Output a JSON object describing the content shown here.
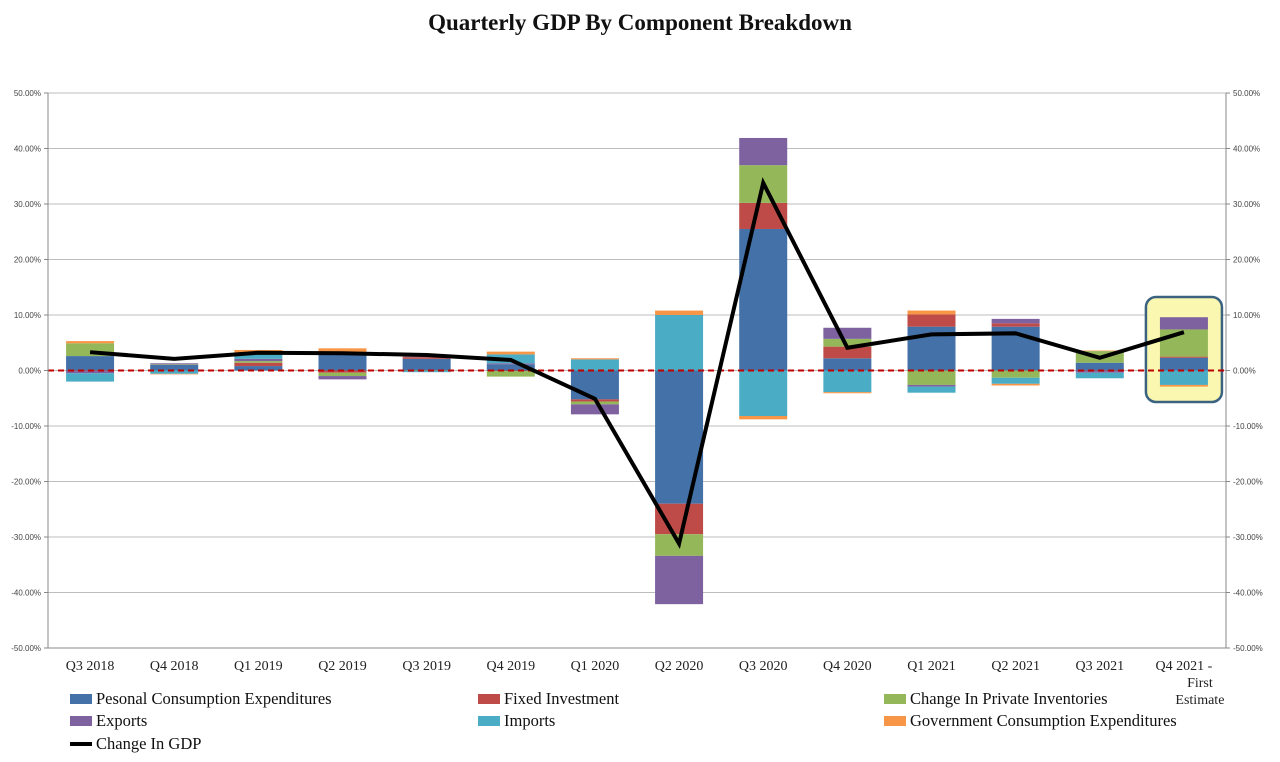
{
  "chart_data": {
    "type": "bar",
    "stacked": true,
    "title": "Quarterly GDP By Component Breakdown",
    "categories": [
      "Q3 2018",
      "Q4 2018",
      "Q1 2019",
      "Q2 2019",
      "Q3 2019",
      "Q4 2019",
      "Q1 2020",
      "Q2 2020",
      "Q3 2020",
      "Q4 2020",
      "Q1 2021",
      "Q2 2021",
      "Q3 2021",
      "Q4 2021 - First Estimate"
    ],
    "category_lines": [
      [
        "Q3 2018"
      ],
      [
        "Q4 2018"
      ],
      [
        "Q1 2019"
      ],
      [
        "Q2 2019"
      ],
      [
        "Q3 2019"
      ],
      [
        "Q4 2019"
      ],
      [
        "Q1 2020"
      ],
      [
        "Q2 2020"
      ],
      [
        "Q3 2020"
      ],
      [
        "Q4 2020"
      ],
      [
        "Q1 2021"
      ],
      [
        "Q2 2021"
      ],
      [
        "Q3 2021"
      ],
      [
        "Q4 2021  -",
        "First",
        "Estimate"
      ]
    ],
    "series": [
      {
        "name": "Pesonal Consumption Expenditures",
        "color": "#4472A8",
        "values": [
          2.6,
          1.0,
          0.8,
          2.9,
          2.1,
          1.1,
          -5.2,
          -24.0,
          25.5,
          2.2,
          7.9,
          7.9,
          1.4,
          2.3
        ]
      },
      {
        "name": "Fixed Investment",
        "color": "#BE4B48",
        "values": [
          -0.1,
          0.0,
          0.6,
          -0.4,
          0.3,
          -0.1,
          -0.4,
          -5.5,
          4.7,
          2.1,
          2.2,
          0.6,
          -0.1,
          0.2
        ]
      },
      {
        "name": "Change In Private Inventories",
        "color": "#94B75A",
        "values": [
          2.3,
          0.1,
          0.3,
          -0.6,
          -0.1,
          -1.0,
          -0.5,
          -3.9,
          6.8,
          1.4,
          -2.6,
          -1.3,
          2.1,
          4.9
        ]
      },
      {
        "name": "Exports",
        "color": "#7E62A0",
        "values": [
          -0.4,
          0.2,
          0.4,
          -0.6,
          0.1,
          0.2,
          -1.8,
          -8.7,
          4.9,
          2.0,
          -0.3,
          0.8,
          -0.3,
          2.2
        ]
      },
      {
        "name": "Imports",
        "color": "#4BACC6",
        "values": [
          -1.5,
          -0.6,
          1.1,
          0.3,
          -0.2,
          1.6,
          2.0,
          10.0,
          -8.2,
          -3.9,
          -1.1,
          -1.1,
          -1.0,
          -2.6
        ]
      },
      {
        "name": "Government Consumption Expenditures",
        "color": "#F79646",
        "values": [
          0.4,
          -0.1,
          0.5,
          0.8,
          0.3,
          0.5,
          0.2,
          0.8,
          -0.6,
          -0.2,
          0.7,
          -0.3,
          0.1,
          -0.3
        ]
      }
    ],
    "line_series": {
      "name": "Change In GDP",
      "color": "#000000",
      "values": [
        3.3,
        2.1,
        3.2,
        3.1,
        2.8,
        1.9,
        -5.1,
        -31.2,
        33.8,
        4.1,
        6.5,
        6.7,
        2.3,
        6.9
      ]
    },
    "ylim": [
      -50,
      50
    ],
    "yticks": [
      -50,
      -40,
      -30,
      -20,
      -10,
      0,
      10,
      20,
      30,
      40,
      50
    ],
    "ytick_labels": [
      "-50.00%",
      "-40.00%",
      "-30.00%",
      "-20.00%",
      "-10.00%",
      "0.00%",
      "10.00%",
      "20.00%",
      "30.00%",
      "40.00%",
      "50.00%"
    ],
    "xlabel": "",
    "ylabel": "",
    "grid": true,
    "zero_line": {
      "style": "dashed",
      "color": "#C00000"
    },
    "highlight": {
      "category_index": 13,
      "fill": "#FAF8B0",
      "border": "#3B6280"
    },
    "legend_position": "bottom"
  }
}
